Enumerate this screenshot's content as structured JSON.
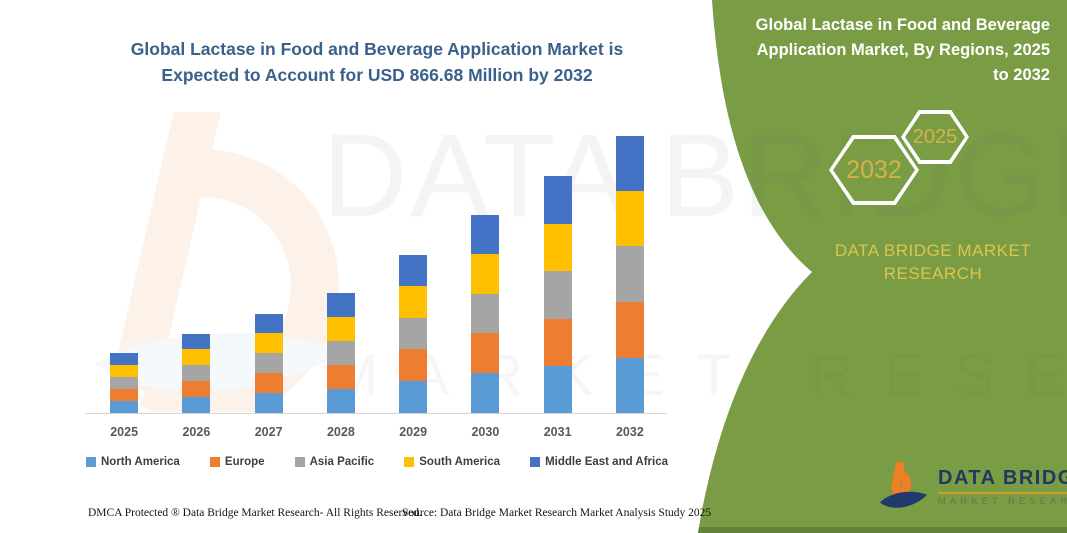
{
  "title": {
    "line1": "Global Lactase in Food and Beverage Application Market is",
    "line2": "Expected to Account for USD 866.68 Million by 2032"
  },
  "chart_data": {
    "type": "bar",
    "stacked": true,
    "title": "Global Lactase in Food and Beverage Application Market is Expected to Account for USD 866.68 Million by 2032",
    "projected_value_2032": "USD 866.68 Million",
    "categories": [
      "2025",
      "2026",
      "2027",
      "2028",
      "2029",
      "2030",
      "2031",
      "2032"
    ],
    "series": [
      {
        "name": "North America",
        "color": "#5B9BD5",
        "values": [
          12,
          16,
          20,
          24,
          32,
          40,
          47,
          55
        ]
      },
      {
        "name": "Europe",
        "color": "#ED7D31",
        "values": [
          12,
          16,
          20,
          24,
          32,
          40,
          47,
          56
        ]
      },
      {
        "name": "Asia Pacific",
        "color": "#A5A5A5",
        "values": [
          12,
          16,
          20,
          24,
          31,
          39,
          48,
          56
        ]
      },
      {
        "name": "South America",
        "color": "#FFC000",
        "values": [
          12,
          16,
          20,
          24,
          32,
          40,
          47,
          55
        ]
      },
      {
        "name": "Middle East and Africa",
        "color": "#4472C4",
        "values": [
          12,
          15,
          19,
          24,
          31,
          39,
          48,
          55
        ]
      }
    ],
    "units": "relative segment height in px (chart has no visible y-axis)",
    "xlabel": "",
    "ylabel": "",
    "grid": false,
    "legend_position": "bottom"
  },
  "watermark": {
    "line1": "DATA BRIDGE",
    "line2": "MARKET RESEARCH"
  },
  "panel": {
    "heading": "Global Lactase in Food and Beverage Application Market, By Regions, 2025 to 2032",
    "hex_large": "2032",
    "hex_small": "2025",
    "brand": "DATA BRIDGE MARKET RESEARCH",
    "colors": {
      "green": "#7A9C44",
      "gold": "#DCC44E",
      "title_blue": "#3A618B"
    }
  },
  "logo": {
    "name": "DATA BRIDGE",
    "subtitle": "MARKET RESEARCH"
  },
  "footer": {
    "dmca": "DMCA Protected ® Data Bridge Market Research-  All Rights Reserved.",
    "source": "Source: Data Bridge Market Research  Market Analysis Study 2025"
  }
}
